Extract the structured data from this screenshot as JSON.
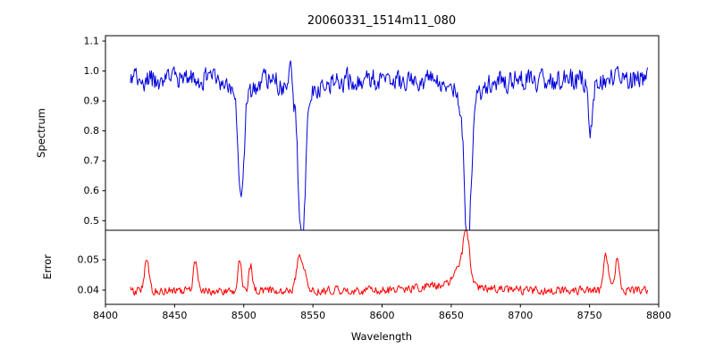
{
  "chart_data": {
    "type": "line",
    "title": "20060331_1514m11_080",
    "xlabel": "Wavelength",
    "xlim": [
      8400,
      8800
    ],
    "xticks": [
      8400,
      8450,
      8500,
      8550,
      8600,
      8650,
      8700,
      8750,
      8800
    ],
    "xtick_labels": [
      "8400",
      "8450",
      "8500",
      "8550",
      "8600",
      "8650",
      "8700",
      "8750",
      "8800"
    ],
    "grid": false,
    "legend": "none",
    "panels": [
      {
        "name": "spectrum",
        "ylabel": "Spectrum",
        "color": "#0000dd",
        "ylim": [
          0.468,
          1.118
        ],
        "yticks": [
          0.5,
          0.6,
          0.7,
          0.8,
          0.9,
          1.0,
          1.1
        ],
        "ytick_labels": [
          "0.5",
          "0.6",
          "0.7",
          "0.8",
          "0.9",
          "1.0",
          "1.1"
        ],
        "x_start": 8418,
        "x_end": 8792,
        "n_points": 640,
        "baseline": 0.97,
        "noise_amplitude": 0.04,
        "features": [
          {
            "center": 8498,
            "amp": -0.36,
            "sigma": 2.0
          },
          {
            "center": 8498,
            "amp": -0.05,
            "sigma": 7.0
          },
          {
            "center": 8534,
            "amp": 0.13,
            "sigma": 0.9
          },
          {
            "center": 8542,
            "amp": -0.49,
            "sigma": 2.4
          },
          {
            "center": 8542,
            "amp": -0.06,
            "sigma": 9.0
          },
          {
            "center": 8662,
            "amp": -0.5,
            "sigma": 2.4
          },
          {
            "center": 8662,
            "amp": -0.06,
            "sigma": 9.0
          },
          {
            "center": 8751,
            "amp": -0.17,
            "sigma": 1.6
          }
        ]
      },
      {
        "name": "error",
        "ylabel": "Error",
        "color": "#ff0000",
        "ylim": [
          0.0353,
          0.0597
        ],
        "yticks": [
          0.04,
          0.05
        ],
        "ytick_labels": [
          "0.04",
          "0.05"
        ],
        "x_start": 8418,
        "x_end": 8792,
        "n_points": 640,
        "baseline": 0.0398,
        "noise_amplitude": 0.0015,
        "features": [
          {
            "center": 8430,
            "amp": 0.011,
            "sigma": 1.5
          },
          {
            "center": 8465,
            "amp": 0.0095,
            "sigma": 1.5
          },
          {
            "center": 8497,
            "amp": 0.011,
            "sigma": 1.3
          },
          {
            "center": 8505,
            "amp": 0.008,
            "sigma": 1.3
          },
          {
            "center": 8540,
            "amp": 0.011,
            "sigma": 2.0
          },
          {
            "center": 8544,
            "amp": 0.006,
            "sigma": 1.2
          },
          {
            "center": 8650,
            "amp": 0.002,
            "sigma": 20.0
          },
          {
            "center": 8656,
            "amp": 0.005,
            "sigma": 4.0
          },
          {
            "center": 8661,
            "amp": 0.0165,
            "sigma": 2.2
          },
          {
            "center": 8762,
            "amp": 0.012,
            "sigma": 1.6
          },
          {
            "center": 8770,
            "amp": 0.011,
            "sigma": 1.6
          }
        ]
      }
    ]
  }
}
